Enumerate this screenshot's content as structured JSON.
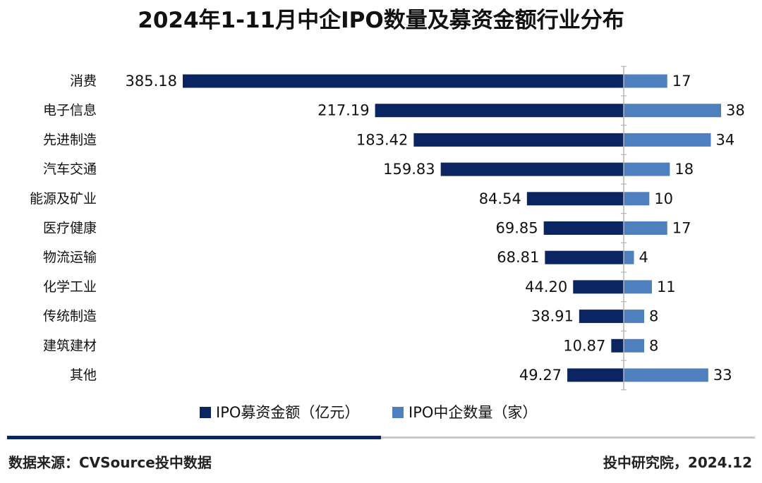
{
  "chart_data": {
    "type": "bar",
    "title": "2024年1-11月中企IPO数量及募资金额行业分布",
    "categories": [
      "消费",
      "电子信息",
      "先进制造",
      "汽车交通",
      "能源及矿业",
      "医疗健康",
      "物流运输",
      "化学工业",
      "传统制造",
      "建筑建材",
      "其他"
    ],
    "series": [
      {
        "name": "IPO募资金额（亿元）",
        "values": [
          385.18,
          217.19,
          183.42,
          159.83,
          84.54,
          69.85,
          68.81,
          44.2,
          38.91,
          10.87,
          49.27
        ],
        "labels": [
          "385.18",
          "217.19",
          "183.42",
          "159.83",
          "84.54",
          "69.85",
          "68.81",
          "44.20",
          "38.91",
          "10.87",
          "49.27"
        ],
        "color": "#0b2562",
        "direction": "left"
      },
      {
        "name": "IPO中企数量（家）",
        "values": [
          17,
          38,
          34,
          18,
          10,
          17,
          4,
          11,
          8,
          8,
          33
        ],
        "labels": [
          "17",
          "38",
          "34",
          "18",
          "10",
          "17",
          "4",
          "11",
          "8",
          "8",
          "33"
        ],
        "color": "#4e80c0",
        "direction": "right"
      }
    ],
    "legend_position": "bottom",
    "grid": false
  },
  "footer": {
    "source": "数据来源：CVSource投中数据",
    "credit": "投中研究院，2024.12"
  }
}
